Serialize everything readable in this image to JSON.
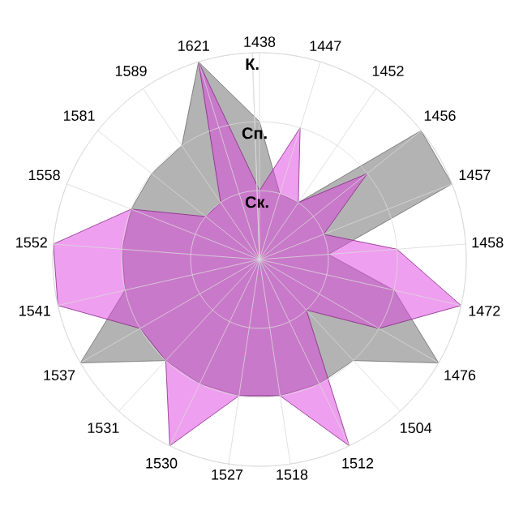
{
  "chart_data": {
    "type": "radar",
    "categories": [
      "1438",
      "1447",
      "1452",
      "1456",
      "1457",
      "1458",
      "1472",
      "1476",
      "1504",
      "1512",
      "1518",
      "1527",
      "1530",
      "1531",
      "1537",
      "1541",
      "1552",
      "1558",
      "1581",
      "1589",
      "1621"
    ],
    "ylim": [
      0,
      3
    ],
    "yticks": [
      {
        "value": 1,
        "label": "Ск."
      },
      {
        "value": 2,
        "label": "Сп."
      },
      {
        "value": 3,
        "label": "К."
      }
    ],
    "grid": true,
    "series": [
      {
        "color": "#b3b3b3",
        "values": [
          2,
          1,
          1,
          3,
          3,
          1,
          2,
          3,
          2,
          2,
          2,
          2,
          2,
          2,
          3,
          2,
          2,
          2,
          2,
          2,
          3
        ]
      },
      {
        "color": "#e040e0",
        "values": [
          1,
          2,
          1,
          2,
          1,
          2,
          3,
          2,
          1,
          3,
          2,
          2,
          3,
          2,
          2,
          3,
          3,
          2,
          1,
          1,
          3
        ]
      }
    ]
  }
}
